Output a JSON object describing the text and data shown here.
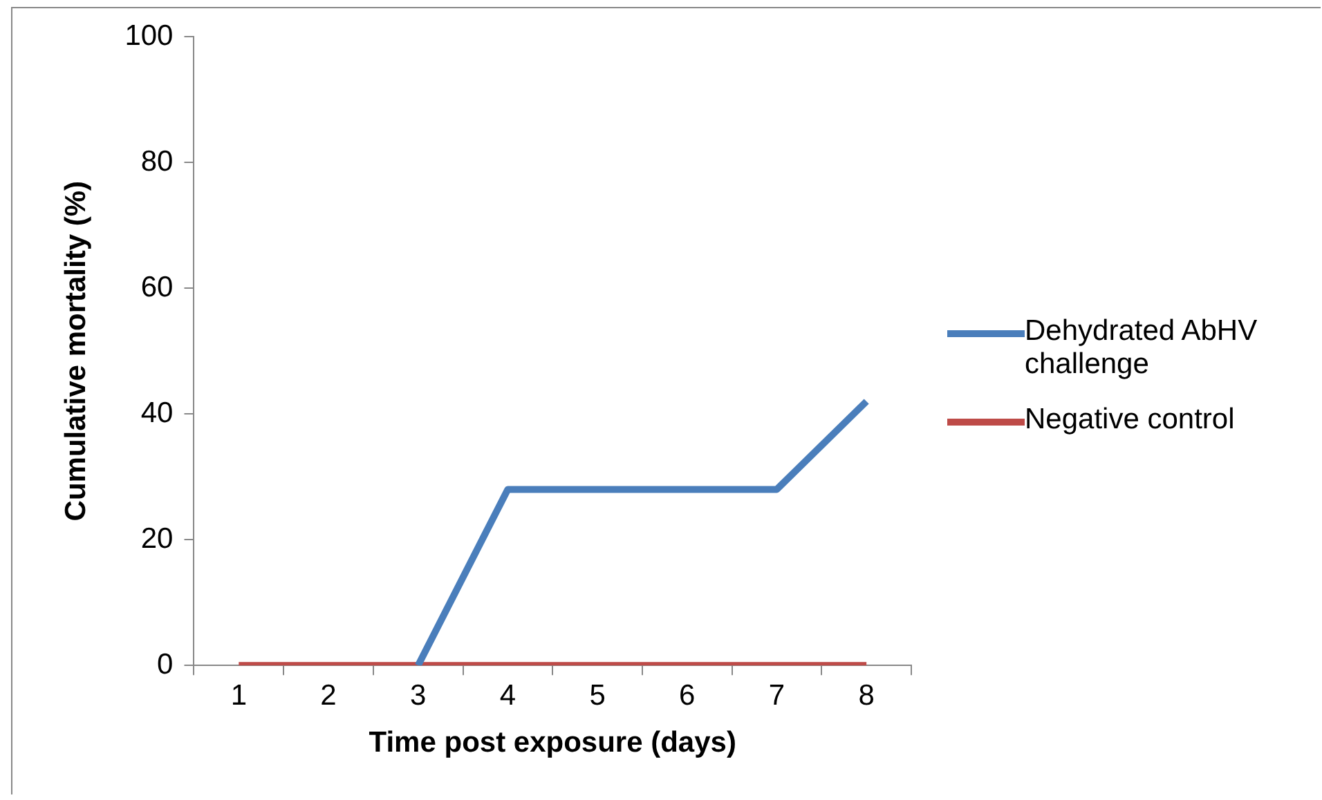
{
  "chart_data": {
    "type": "line",
    "xlabel": "Time post exposure (days)",
    "ylabel": "Cumulative mortality (%)",
    "categories": [
      "1",
      "2",
      "3",
      "4",
      "5",
      "6",
      "7",
      "8"
    ],
    "series": [
      {
        "name": "Dehydrated AbHV challenge",
        "color": "#4a7ebb",
        "values": [
          null,
          null,
          0,
          28,
          28,
          28,
          28,
          42
        ]
      },
      {
        "name": "Negative control",
        "color": "#be4b48",
        "values": [
          0,
          0,
          0,
          0,
          0,
          0,
          0,
          0
        ]
      }
    ],
    "ylim": [
      0,
      100
    ],
    "yticks": [
      0,
      20,
      40,
      60,
      80,
      100
    ],
    "grid": false,
    "legend": "right",
    "marker": "none",
    "line_style": "solid"
  }
}
